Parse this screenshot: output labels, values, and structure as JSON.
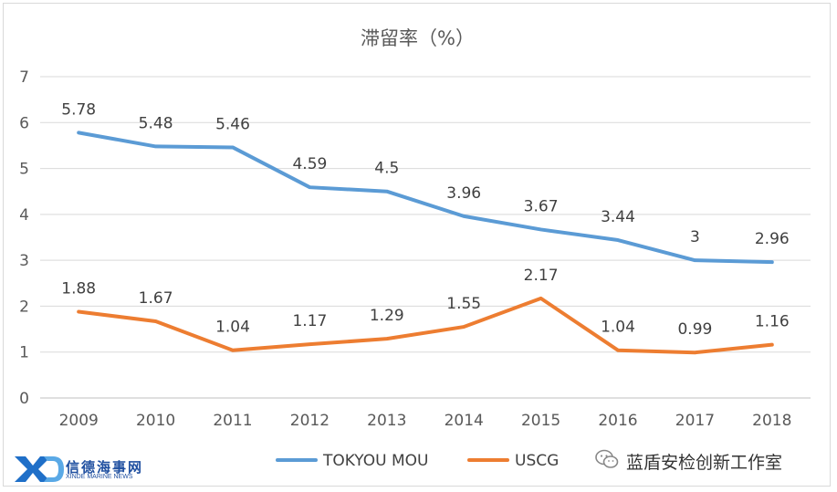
{
  "chart_data": {
    "type": "line",
    "title": "滞留率（%）",
    "categories": [
      "2009",
      "2010",
      "2011",
      "2012",
      "2013",
      "2014",
      "2015",
      "2016",
      "2017",
      "2018"
    ],
    "ylim": [
      0,
      7
    ],
    "yticks": [
      "0",
      "1",
      "2",
      "3",
      "4",
      "5",
      "6",
      "7"
    ],
    "grid": true,
    "legend_position": "bottom",
    "series": [
      {
        "name": "TOKYOU MOU",
        "color": "#5b9bd5",
        "values": [
          5.78,
          5.48,
          5.46,
          4.59,
          4.5,
          3.96,
          3.67,
          3.44,
          3,
          2.96
        ],
        "labels": [
          "5.78",
          "5.48",
          "5.46",
          "4.59",
          "4.5",
          "3.96",
          "3.67",
          "3.44",
          "3",
          "2.96"
        ]
      },
      {
        "name": "USCG",
        "color": "#ed7d31",
        "values": [
          1.88,
          1.67,
          1.04,
          1.17,
          1.29,
          1.55,
          2.17,
          1.04,
          0.99,
          1.16
        ],
        "labels": [
          "1.88",
          "1.67",
          "1.04",
          "1.17",
          "1.29",
          "1.55",
          "2.17",
          "1.04",
          "0.99",
          "1.16"
        ]
      }
    ]
  },
  "logo": {
    "cn": "信德海事网",
    "en": "XINDE MARINE NEWS"
  },
  "watermark": {
    "text": "蓝盾安检创新工作室",
    "icon": "wechat-icon"
  }
}
